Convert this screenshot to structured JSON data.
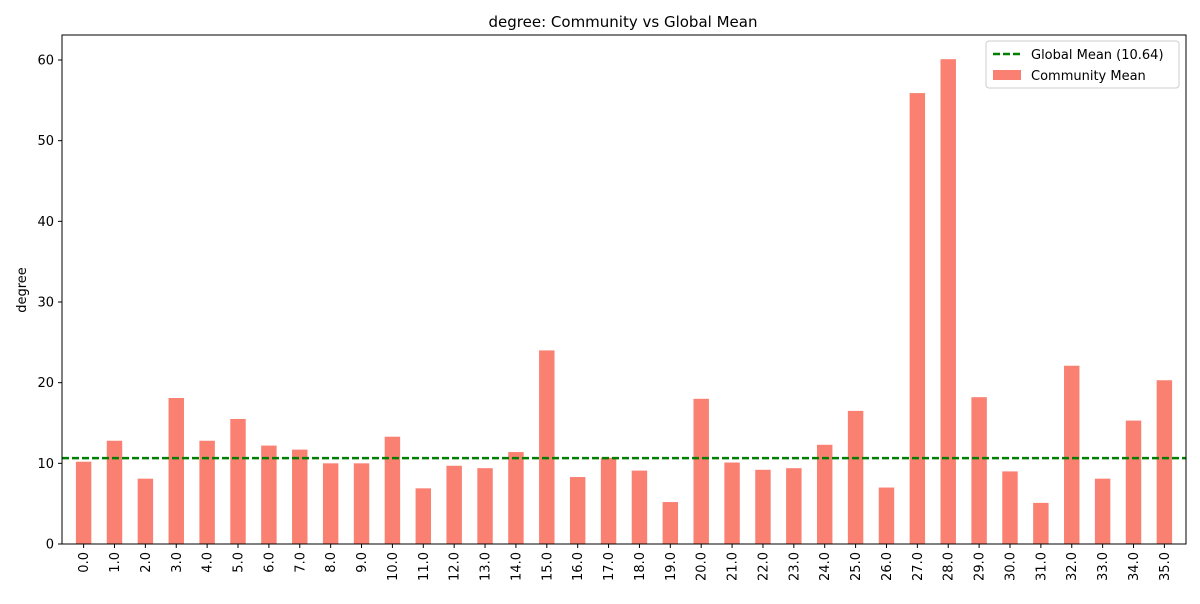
{
  "chart_data": {
    "type": "bar",
    "title": "degree: Community vs Global Mean",
    "xlabel": "",
    "ylabel": "degree",
    "ylim": [
      0,
      63.1
    ],
    "yticks": [
      0,
      10,
      20,
      30,
      40,
      50,
      60
    ],
    "grid": false,
    "legend_position": "top-right",
    "categories": [
      "0.0",
      "1.0",
      "2.0",
      "3.0",
      "4.0",
      "5.0",
      "6.0",
      "7.0",
      "8.0",
      "9.0",
      "10.0",
      "11.0",
      "12.0",
      "13.0",
      "14.0",
      "15.0",
      "16.0",
      "17.0",
      "18.0",
      "19.0",
      "20.0",
      "21.0",
      "22.0",
      "23.0",
      "24.0",
      "25.0",
      "26.0",
      "27.0",
      "28.0",
      "29.0",
      "30.0",
      "31.0",
      "32.0",
      "33.0",
      "34.0",
      "35.0"
    ],
    "series": [
      {
        "name": "Community Mean",
        "color": "#fa8072",
        "values": [
          10.2,
          12.8,
          8.1,
          18.1,
          12.8,
          15.5,
          12.2,
          11.7,
          10.0,
          10.0,
          13.3,
          6.9,
          9.7,
          9.4,
          11.4,
          24.0,
          8.3,
          10.7,
          9.1,
          5.2,
          18.0,
          10.1,
          9.2,
          9.4,
          12.3,
          16.5,
          7.0,
          55.9,
          60.1,
          18.2,
          9.0,
          5.1,
          22.1,
          8.1,
          15.3,
          20.3
        ]
      }
    ],
    "reference_line": {
      "name": "Global Mean (10.64)",
      "value": 10.64,
      "color": "#008000",
      "style": "dashed"
    }
  }
}
